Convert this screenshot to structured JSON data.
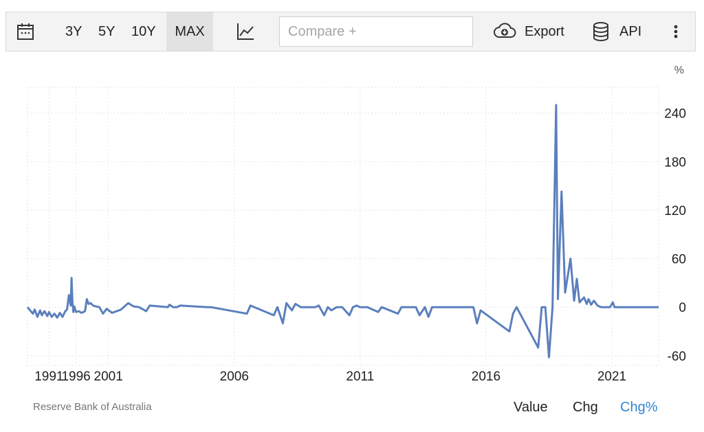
{
  "toolbar": {
    "ranges": [
      "3Y",
      "5Y",
      "10Y",
      "MAX"
    ],
    "active_range": "MAX",
    "compare_placeholder": "Compare +",
    "export_label": "Export",
    "api_label": "API",
    "icons": [
      "calendar-icon",
      "line-chart-icon",
      "cloud-download-icon",
      "database-icon",
      "more-vertical-icon"
    ]
  },
  "chart_data": {
    "type": "line",
    "unit": "%",
    "color": "#5b7fbd",
    "ylim": [
      -72,
      272
    ],
    "y_ticks": [
      240,
      180,
      120,
      60,
      0,
      -60
    ],
    "x_range": [
      1989.8,
      2024.9
    ],
    "x_tick_labels": [
      {
        "label": "1991",
        "x": 1991
      },
      {
        "label": "1996",
        "x": 1992.5
      },
      {
        "label": "2001",
        "x": 1994.3
      },
      {
        "label": "2006",
        "x": 2001.3
      },
      {
        "label": "2011",
        "x": 2008.3
      },
      {
        "label": "2016",
        "x": 2015.3
      },
      {
        "label": "2021",
        "x": 2022.3
      }
    ],
    "grid": true,
    "x": [
      1989.8,
      1990.1,
      1990.2,
      1990.35,
      1990.5,
      1990.6,
      1990.75,
      1990.9,
      1991.0,
      1991.15,
      1991.3,
      1991.45,
      1991.6,
      1991.75,
      1991.9,
      1992.0,
      1992.1,
      1992.2,
      1992.25,
      1992.3,
      1992.35,
      1992.4,
      1992.5,
      1992.65,
      1992.8,
      1993.0,
      1993.1,
      1993.2,
      1993.3,
      1993.45,
      1993.6,
      1993.8,
      1994.0,
      1994.2,
      1994.5,
      1995.0,
      1995.4,
      1995.7,
      1996.0,
      1996.4,
      1996.6,
      1997.6,
      1997.7,
      1997.9,
      1998.1,
      1998.3,
      1999.8,
      2000.0,
      2002.0,
      2002.2,
      2003.5,
      2003.7,
      2004.0,
      2004.2,
      2004.5,
      2004.7,
      2005.0,
      2005.8,
      2006.0,
      2006.3,
      2006.5,
      2006.7,
      2007.0,
      2007.3,
      2007.7,
      2007.9,
      2008.1,
      2008.3,
      2008.5,
      2008.7,
      2009.3,
      2009.5,
      2010.4,
      2010.6,
      2010.8,
      2011.4,
      2011.6,
      2011.9,
      2012.1,
      2012.3,
      2012.5,
      2012.7,
      2014.6,
      2014.8,
      2015.0,
      2016.6,
      2016.8,
      2017.0,
      2018.2,
      2018.4,
      2018.6,
      2018.8,
      2019.0,
      2019.2,
      2019.3,
      2019.5,
      2019.7,
      2020.0,
      2020.2,
      2020.35,
      2020.5,
      2020.75,
      2020.9,
      2021.0,
      2021.15,
      2021.3,
      2021.5,
      2021.7,
      2022.2,
      2022.35,
      2022.45,
      2022.55,
      2022.65,
      2022.75,
      2022.85,
      2022.95,
      2023.05,
      2023.2,
      2023.35,
      2023.5,
      2023.65,
      2023.8,
      2024.0,
      2024.2,
      2024.4,
      2024.6,
      2024.9
    ],
    "y": [
      0,
      -8,
      -3,
      -12,
      -4,
      -10,
      -5,
      -11,
      -6,
      -12,
      -8,
      -13,
      -7,
      -12,
      -5,
      -3,
      15,
      2,
      36,
      6,
      -6,
      1,
      -6,
      -5,
      -7,
      -5,
      10,
      4,
      5,
      2,
      1,
      0,
      -8,
      -2,
      -7,
      -3,
      5,
      1,
      0,
      -5,
      2,
      0,
      3,
      0,
      0,
      2,
      0,
      0,
      -8,
      2,
      -10,
      0,
      -20,
      5,
      -4,
      4,
      0,
      0,
      2,
      -10,
      0,
      -4,
      0,
      0,
      -10,
      0,
      2,
      0,
      0,
      0,
      -6,
      0,
      -8,
      0,
      0,
      0,
      -10,
      0,
      -12,
      0,
      0,
      0,
      0,
      -20,
      -4,
      -30,
      -8,
      0,
      -50,
      0,
      0,
      -62,
      0,
      250,
      10,
      143,
      18,
      60,
      8,
      35,
      6,
      12,
      4,
      10,
      3,
      8,
      2,
      0,
      0,
      6,
      0,
      0,
      0,
      0,
      0,
      0,
      0,
      0,
      0,
      0,
      0,
      0,
      0,
      0,
      0,
      0,
      0
    ]
  },
  "footer": {
    "source": "Reserve Bank of Australia",
    "value_label": "Value",
    "chg_label": "Chg",
    "chg_pct_label": "Chg%",
    "active_color": "#2f86d6"
  }
}
